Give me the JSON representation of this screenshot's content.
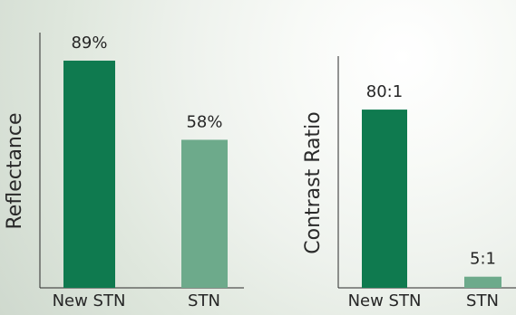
{
  "chart_data": [
    {
      "type": "bar",
      "categories": [
        "New STN",
        "STN"
      ],
      "values": [
        89,
        58
      ],
      "value_labels": [
        "89%",
        "58%"
      ],
      "ylabel": "Reflectance",
      "ylim": [
        0,
        100
      ],
      "colors": [
        "#0f7a4f",
        "#6daa8b"
      ]
    },
    {
      "type": "bar",
      "categories": [
        "New STN",
        "STN"
      ],
      "values": [
        80,
        5
      ],
      "value_labels": [
        "80:1",
        "5:1"
      ],
      "ylabel": "Contrast Ratio",
      "ylim": [
        0,
        104
      ],
      "colors": [
        "#0f7a4f",
        "#6daa8b"
      ]
    }
  ]
}
